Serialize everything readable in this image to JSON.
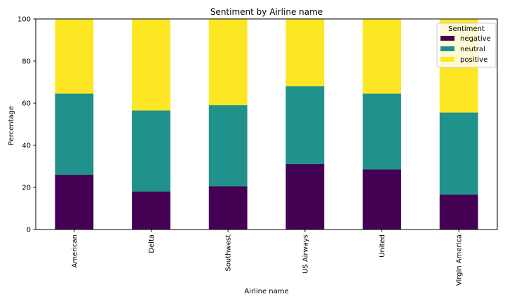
{
  "chart_data": {
    "type": "bar",
    "stacked": true,
    "title": "Sentiment by Airline name",
    "xlabel": "Airline name",
    "ylabel": "Percentage",
    "ylim": [
      0,
      100
    ],
    "yticks": [
      0,
      20,
      40,
      60,
      80,
      100
    ],
    "grid": false,
    "categories": [
      "American",
      "Delta",
      "Southwest",
      "US Airways",
      "United",
      "Virgin America"
    ],
    "series": [
      {
        "name": "negative",
        "color": "#440154",
        "values": [
          26,
          18,
          20.5,
          31,
          28.5,
          16.5
        ]
      },
      {
        "name": "neutral",
        "color": "#21918c",
        "values": [
          38.5,
          38.5,
          38.5,
          37,
          36,
          39
        ]
      },
      {
        "name": "positive",
        "color": "#fde725",
        "values": [
          35.5,
          43.5,
          41,
          32,
          35.5,
          44.5
        ]
      }
    ],
    "legend": {
      "title": "Sentiment",
      "position": "top-right"
    }
  }
}
